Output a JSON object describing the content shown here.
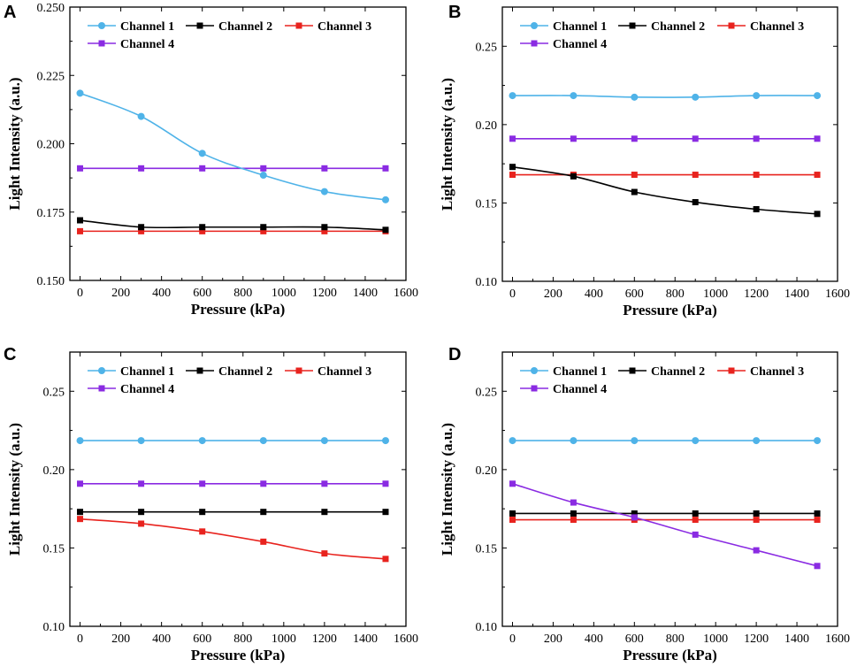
{
  "chart_data": [
    {
      "panel": "A",
      "type": "line",
      "xlabel": "Pressure (kPa)",
      "ylabel": "Light Intensity (a.u.)",
      "xlim": [
        -50,
        1600
      ],
      "ylim": [
        0.15,
        0.25
      ],
      "xticks": [
        0,
        200,
        400,
        600,
        800,
        1000,
        1200,
        1400,
        1600
      ],
      "xtick_labels": [
        "0",
        "200",
        "400",
        "600",
        "800",
        "1000",
        "1200",
        "1400",
        "1600"
      ],
      "yticks": [
        0.15,
        0.175,
        0.2,
        0.225,
        0.25
      ],
      "ytick_labels": [
        "0.150",
        "0.175",
        "0.200",
        "0.225",
        "0.250"
      ],
      "x": [
        0,
        300,
        600,
        900,
        1200,
        1500
      ],
      "series": [
        {
          "name": "Channel 1",
          "color": "#4FB3E8",
          "marker": "circle",
          "values": [
            0.2185,
            0.21,
            0.1965,
            0.1885,
            0.1825,
            0.1795
          ]
        },
        {
          "name": "Channel 2",
          "color": "#000000",
          "marker": "square",
          "values": [
            0.172,
            0.1695,
            0.1695,
            0.1695,
            0.1695,
            0.1685
          ]
        },
        {
          "name": "Channel 3",
          "color": "#E8231E",
          "marker": "square",
          "values": [
            0.168,
            0.168,
            0.168,
            0.168,
            0.168,
            0.168
          ]
        },
        {
          "name": "Channel 4",
          "color": "#8A2BE2",
          "marker": "square",
          "values": [
            0.191,
            0.191,
            0.191,
            0.191,
            0.191,
            0.191
          ]
        }
      ]
    },
    {
      "panel": "B",
      "type": "line",
      "xlabel": "Pressure (kPa)",
      "ylabel": "Light Intensity (a.u.)",
      "xlim": [
        -50,
        1600
      ],
      "ylim": [
        0.1,
        0.275
      ],
      "xticks": [
        0,
        200,
        400,
        600,
        800,
        1000,
        1200,
        1400,
        1600
      ],
      "xtick_labels": [
        "0",
        "200",
        "400",
        "600",
        "800",
        "1000",
        "1200",
        "1400",
        "1600"
      ],
      "yticks": [
        0.1,
        0.15,
        0.2,
        0.25
      ],
      "ytick_labels": [
        "0.10",
        "0.15",
        "0.20",
        "0.25"
      ],
      "x": [
        0,
        300,
        600,
        900,
        1200,
        1500
      ],
      "series": [
        {
          "name": "Channel 1",
          "color": "#4FB3E8",
          "marker": "circle",
          "values": [
            0.2185,
            0.2185,
            0.2175,
            0.2175,
            0.2185,
            0.2185
          ]
        },
        {
          "name": "Channel 2",
          "color": "#000000",
          "marker": "square",
          "values": [
            0.173,
            0.167,
            0.157,
            0.1505,
            0.146,
            0.143
          ]
        },
        {
          "name": "Channel 3",
          "color": "#E8231E",
          "marker": "square",
          "values": [
            0.168,
            0.168,
            0.168,
            0.168,
            0.168,
            0.168
          ]
        },
        {
          "name": "Channel 4",
          "color": "#8A2BE2",
          "marker": "square",
          "values": [
            0.191,
            0.191,
            0.191,
            0.191,
            0.191,
            0.191
          ]
        }
      ]
    },
    {
      "panel": "C",
      "type": "line",
      "xlabel": "Pressure (kPa)",
      "ylabel": "Light Intensity (a.u.)",
      "xlim": [
        -50,
        1600
      ],
      "ylim": [
        0.1,
        0.275
      ],
      "xticks": [
        0,
        200,
        400,
        600,
        800,
        1000,
        1200,
        1400,
        1600
      ],
      "xtick_labels": [
        "0",
        "200",
        "400",
        "600",
        "800",
        "1000",
        "1200",
        "1400",
        "1600"
      ],
      "yticks": [
        0.1,
        0.15,
        0.2,
        0.25
      ],
      "ytick_labels": [
        "0.10",
        "0.15",
        "0.20",
        "0.25"
      ],
      "x": [
        0,
        300,
        600,
        900,
        1200,
        1500
      ],
      "series": [
        {
          "name": "Channel 1",
          "color": "#4FB3E8",
          "marker": "circle",
          "values": [
            0.2185,
            0.2185,
            0.2185,
            0.2185,
            0.2185,
            0.2185
          ]
        },
        {
          "name": "Channel 2",
          "color": "#000000",
          "marker": "square",
          "values": [
            0.173,
            0.173,
            0.173,
            0.173,
            0.173,
            0.173
          ]
        },
        {
          "name": "Channel 3",
          "color": "#E8231E",
          "marker": "square",
          "values": [
            0.1685,
            0.1655,
            0.1605,
            0.154,
            0.1465,
            0.143
          ]
        },
        {
          "name": "Channel 4",
          "color": "#8A2BE2",
          "marker": "square",
          "values": [
            0.191,
            0.191,
            0.191,
            0.191,
            0.191,
            0.191
          ]
        }
      ]
    },
    {
      "panel": "D",
      "type": "line",
      "xlabel": "Pressure (kPa)",
      "ylabel": "Light Intensity (a.u.)",
      "xlim": [
        -50,
        1600
      ],
      "ylim": [
        0.1,
        0.275
      ],
      "xticks": [
        0,
        200,
        400,
        600,
        800,
        1000,
        1200,
        1400,
        1600
      ],
      "xtick_labels": [
        "0",
        "200",
        "400",
        "600",
        "800",
        "1000",
        "1200",
        "1400",
        "1600"
      ],
      "yticks": [
        0.1,
        0.15,
        0.2,
        0.25
      ],
      "ytick_labels": [
        "0.10",
        "0.15",
        "0.20",
        "0.25"
      ],
      "x": [
        0,
        300,
        600,
        900,
        1200,
        1500
      ],
      "series": [
        {
          "name": "Channel 1",
          "color": "#4FB3E8",
          "marker": "circle",
          "values": [
            0.2185,
            0.2185,
            0.2185,
            0.2185,
            0.2185,
            0.2185
          ]
        },
        {
          "name": "Channel 2",
          "color": "#000000",
          "marker": "square",
          "values": [
            0.172,
            0.172,
            0.172,
            0.172,
            0.172,
            0.172
          ]
        },
        {
          "name": "Channel 3",
          "color": "#E8231E",
          "marker": "square",
          "values": [
            0.168,
            0.168,
            0.168,
            0.168,
            0.168,
            0.168
          ]
        },
        {
          "name": "Channel 4",
          "color": "#8A2BE2",
          "marker": "square",
          "values": [
            0.191,
            0.179,
            0.1695,
            0.1585,
            0.1485,
            0.1385
          ]
        }
      ]
    }
  ]
}
